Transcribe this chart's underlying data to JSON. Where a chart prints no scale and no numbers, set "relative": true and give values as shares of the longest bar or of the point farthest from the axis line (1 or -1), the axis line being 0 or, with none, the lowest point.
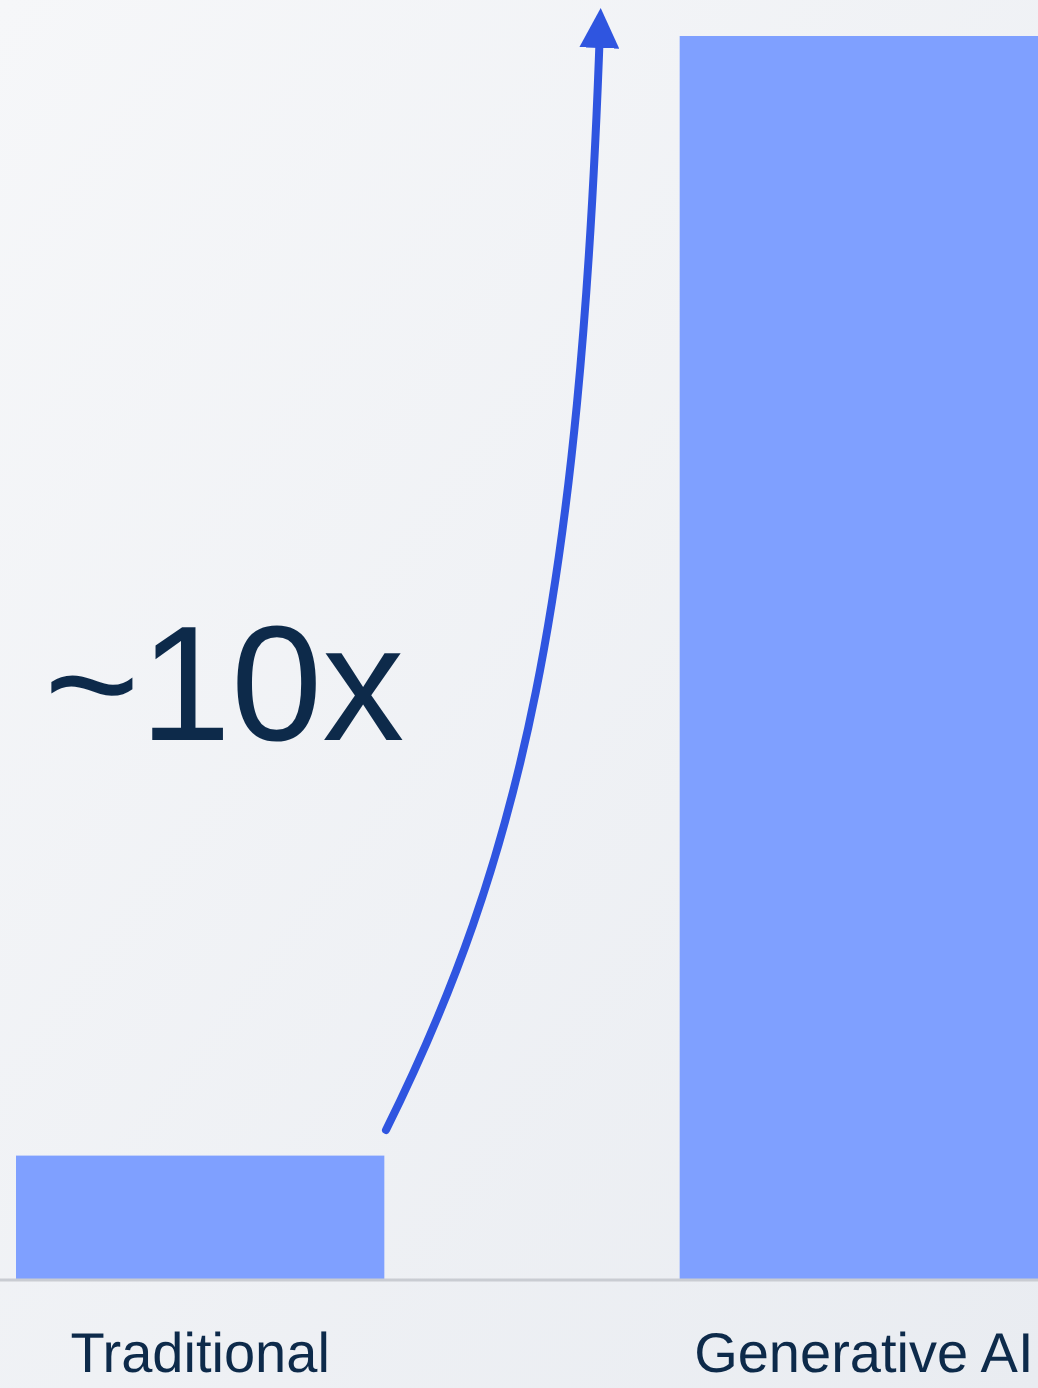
{
  "chart_data": {
    "type": "bar",
    "relative": true,
    "categories": [
      "Traditional",
      "Generative AI"
    ],
    "values": [
      0.1,
      1
    ],
    "color": "#7fa0ff",
    "annotations": [
      "~10x"
    ],
    "grid": false
  }
}
